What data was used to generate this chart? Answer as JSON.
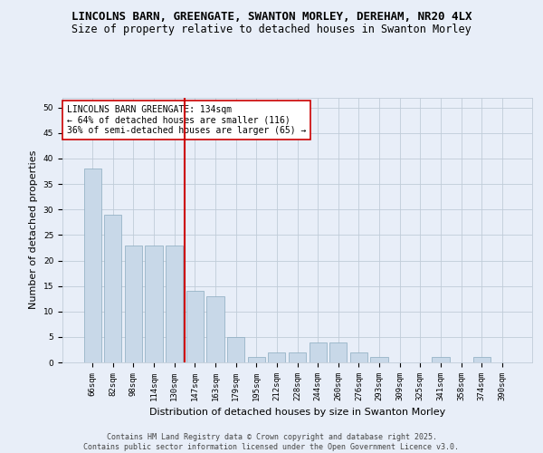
{
  "title_line1": "LINCOLNS BARN, GREENGATE, SWANTON MORLEY, DEREHAM, NR20 4LX",
  "title_line2": "Size of property relative to detached houses in Swanton Morley",
  "xlabel": "Distribution of detached houses by size in Swanton Morley",
  "ylabel": "Number of detached properties",
  "categories": [
    "66sqm",
    "82sqm",
    "98sqm",
    "114sqm",
    "130sqm",
    "147sqm",
    "163sqm",
    "179sqm",
    "195sqm",
    "212sqm",
    "228sqm",
    "244sqm",
    "260sqm",
    "276sqm",
    "293sqm",
    "309sqm",
    "325sqm",
    "341sqm",
    "358sqm",
    "374sqm",
    "390sqm"
  ],
  "values": [
    38,
    29,
    23,
    23,
    23,
    14,
    13,
    5,
    1,
    2,
    2,
    4,
    4,
    2,
    1,
    0,
    0,
    1,
    0,
    1,
    0
  ],
  "bar_color": "#c8d8e8",
  "bar_edge_color": "#8aaabf",
  "vline_x": 4.5,
  "vline_color": "#cc0000",
  "annotation_text": "LINCOLNS BARN GREENGATE: 134sqm\n← 64% of detached houses are smaller (116)\n36% of semi-detached houses are larger (65) →",
  "annotation_box_color": "#ffffff",
  "annotation_box_edge": "#cc0000",
  "ylim": [
    0,
    52
  ],
  "yticks": [
    0,
    5,
    10,
    15,
    20,
    25,
    30,
    35,
    40,
    45,
    50
  ],
  "background_color": "#e8eef8",
  "plot_background": "#e8eef8",
  "grid_color": "#c0ccd8",
  "footer_text": "Contains HM Land Registry data © Crown copyright and database right 2025.\nContains public sector information licensed under the Open Government Licence v3.0.",
  "title_fontsize": 9,
  "subtitle_fontsize": 8.5,
  "axis_label_fontsize": 8,
  "tick_fontsize": 6.5,
  "annotation_fontsize": 7,
  "footer_fontsize": 6
}
